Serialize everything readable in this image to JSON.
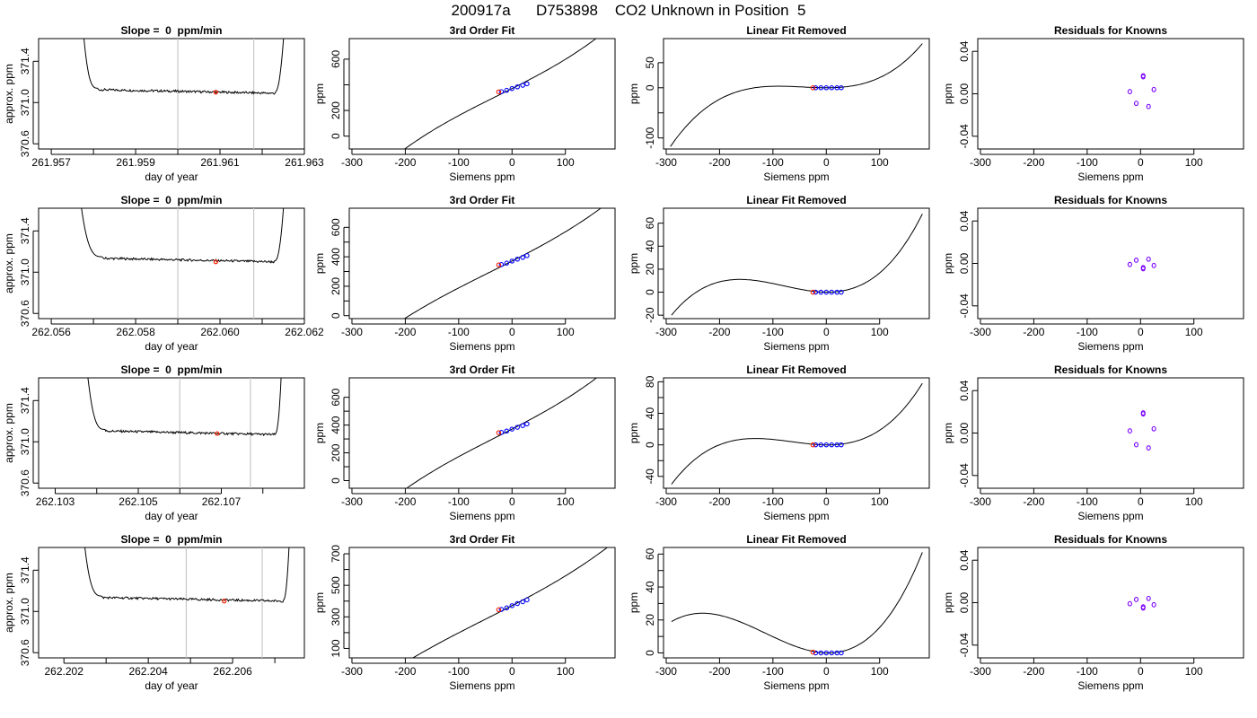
{
  "title": "200917a      D753898    CO2 Unknown in Position  5",
  "colors": {
    "line": "#000000",
    "grid_vline": "#c8c8c8",
    "unknown_point": "#ff2200",
    "known_point": "#0000ff",
    "residual_point": "#7a00ff"
  },
  "chart_data": [
    {
      "type": "line",
      "row": 0,
      "col": 0,
      "title": "Slope =  0  ppm/min",
      "xlabel": "day of year",
      "ylabel": "approx. ppm",
      "xlim": [
        261.9567,
        261.963
      ],
      "ylim": [
        370.55,
        371.62
      ],
      "xticks": [
        "261.957",
        "261.959",
        "261.961",
        "261.963"
      ],
      "xticks_minor": [
        261.958,
        261.96,
        261.962
      ],
      "yticks": [
        "370.6",
        "371.0",
        "371.4"
      ],
      "vlines": [
        261.96,
        261.9618
      ],
      "signal": {
        "start": 261.9577,
        "plateau_start": 261.9581,
        "plateau_end": 261.9623,
        "end": 261.9626,
        "level": 371.1
      },
      "unknown_point": {
        "x": 261.9609,
        "y": 371.1
      }
    },
    {
      "type": "line",
      "row": 0,
      "col": 1,
      "title": "3rd Order Fit",
      "xlabel": "Siemens ppm",
      "ylabel": "ppm",
      "xlim": [
        -305,
        193
      ],
      "ylim": [
        -100,
        760
      ],
      "xticks": [
        "-300",
        "-200",
        "-100",
        "0",
        "100"
      ],
      "yticks": [
        "0",
        "200",
        "600"
      ],
      "yticks_minor": [
        400
      ],
      "curve": {
        "poly": [
          371,
          2.09,
          0.00082,
          1.03e-05
        ],
        "x_range": [
          -292,
          180
        ]
      },
      "known_points": {
        "x": [
          -20,
          -10,
          0,
          10,
          20,
          28
        ],
        "y": [
          347,
          357,
          371,
          384,
          396,
          408
        ]
      },
      "unknown_points": {
        "x": [
          -25
        ],
        "y": [
          345
        ]
      }
    },
    {
      "type": "line",
      "row": 0,
      "col": 2,
      "title": "Linear Fit Removed",
      "xlabel": "Siemens ppm",
      "ylabel": "ppm",
      "xlim": [
        -305,
        193
      ],
      "ylim": [
        -122,
        98
      ],
      "xticks": [
        "-300",
        "-200",
        "-100",
        "0",
        "100"
      ],
      "yticks": [
        "-100",
        "0",
        "50"
      ],
      "yticks_minor": [
        -50
      ],
      "curve": {
        "cubic_through": [
          [
            -292,
            -117
          ],
          [
            -100,
            3
          ],
          [
            0,
            0
          ],
          [
            180,
            88
          ]
        ],
        "x_range": [
          -292,
          180
        ]
      },
      "known_points": {
        "x": [
          -20,
          -10,
          0,
          10,
          20,
          28
        ],
        "y": [
          0,
          0,
          0,
          0,
          0,
          0
        ]
      },
      "unknown_points": {
        "x": [
          -25
        ],
        "y": [
          0
        ]
      }
    },
    {
      "type": "scatter",
      "row": 0,
      "col": 3,
      "title": "Residuals for Knowns",
      "xlabel": "Siemens ppm",
      "ylabel": "ppm",
      "xlim": [
        -305,
        193
      ],
      "ylim": [
        -0.052,
        0.052
      ],
      "xticks": [
        "-300",
        "-200",
        "-100",
        "0",
        "100"
      ],
      "yticks": [
        "-0.04",
        "0.00",
        "0.04"
      ],
      "points": {
        "x": [
          -20,
          -8,
          5,
          5,
          15,
          25
        ],
        "y": [
          0.002,
          -0.009,
          0.016,
          0.017,
          -0.012,
          0.004
        ]
      }
    },
    {
      "type": "line",
      "row": 1,
      "col": 0,
      "title": "Slope =  0  ppm/min",
      "xlabel": "day of year",
      "ylabel": "approx. ppm",
      "xlim": [
        262.0557,
        262.062
      ],
      "ylim": [
        370.55,
        371.62
      ],
      "xticks": [
        "262.056",
        "262.058",
        "262.060",
        "262.062"
      ],
      "xticks_minor": [
        262.057,
        262.059,
        262.061
      ],
      "yticks": [
        "370.6",
        "371.0",
        "371.4"
      ],
      "vlines": [
        262.059,
        262.0608
      ],
      "signal": {
        "start": 262.0566,
        "plateau_start": 262.0572,
        "plateau_end": 262.0613,
        "end": 262.0616,
        "level": 371.11
      },
      "unknown_point": {
        "x": 262.0599,
        "y": 371.1
      }
    },
    {
      "type": "line",
      "row": 1,
      "col": 1,
      "title": "3rd Order Fit",
      "xlabel": "Siemens ppm",
      "ylabel": "ppm",
      "xlim": [
        -305,
        193
      ],
      "ylim": [
        -20,
        730
      ],
      "xticks": [
        "-300",
        "-200",
        "-100",
        "0",
        "100"
      ],
      "yticks": [
        "0",
        "200",
        "400",
        "600"
      ],
      "yticks_minor": [
        100,
        300,
        500
      ],
      "curve": {
        "poly": [
          371,
          1.84,
          0.00082,
          6.6e-06
        ],
        "x_range": [
          -292,
          180
        ]
      },
      "known_points": {
        "x": [
          -20,
          -10,
          0,
          10,
          20,
          28
        ],
        "y": [
          347,
          357,
          371,
          384,
          396,
          408
        ]
      },
      "unknown_points": {
        "x": [
          -25
        ],
        "y": [
          345
        ]
      }
    },
    {
      "type": "line",
      "row": 1,
      "col": 2,
      "title": "Linear Fit Removed",
      "xlabel": "Siemens ppm",
      "ylabel": "ppm",
      "xlim": [
        -305,
        193
      ],
      "ylim": [
        -23,
        73
      ],
      "xticks": [
        "-300",
        "-200",
        "-100",
        "0",
        "100"
      ],
      "yticks": [
        "-20",
        "0",
        "20",
        "40",
        "60"
      ],
      "curve": {
        "cubic_through": [
          [
            -290,
            -20
          ],
          [
            -170,
            11
          ],
          [
            0,
            0
          ],
          [
            180,
            68
          ]
        ],
        "x_range": [
          -290,
          180
        ]
      },
      "known_points": {
        "x": [
          -20,
          -10,
          0,
          10,
          20,
          28
        ],
        "y": [
          0,
          0,
          0,
          0,
          0,
          0
        ]
      },
      "unknown_points": {
        "x": [
          -25
        ],
        "y": [
          0
        ]
      }
    },
    {
      "type": "scatter",
      "row": 1,
      "col": 3,
      "title": "Residuals for Knowns",
      "xlabel": "Siemens ppm",
      "ylabel": "ppm",
      "xlim": [
        -305,
        193
      ],
      "ylim": [
        -0.052,
        0.052
      ],
      "xticks": [
        "-300",
        "-200",
        "-100",
        "0",
        "100"
      ],
      "yticks": [
        "-0.04",
        "0.00",
        "0.04"
      ],
      "points": {
        "x": [
          -20,
          -8,
          5,
          5,
          15,
          25
        ],
        "y": [
          -0.001,
          0.003,
          -0.005,
          -0.004,
          0.004,
          -0.002
        ]
      }
    },
    {
      "type": "line",
      "row": 2,
      "col": 0,
      "title": "Slope =  0  ppm/min",
      "xlabel": "day of year",
      "ylabel": "approx. ppm",
      "xlim": [
        262.1026,
        262.109
      ],
      "ylim": [
        370.55,
        371.62
      ],
      "xticks": [
        "262.103",
        "262.105",
        "262.107"
      ],
      "xticks_minor": [
        262.104,
        262.106,
        262.108
      ],
      "yticks": [
        "370.6",
        "371.0",
        "371.4"
      ],
      "vlines": [
        262.106,
        262.1077
      ],
      "signal": {
        "start": 262.1037,
        "plateau_start": 262.1042,
        "plateau_end": 262.1083,
        "end": 262.1085,
        "level": 371.08
      },
      "unknown_point": {
        "x": 262.1069,
        "y": 371.08
      }
    },
    {
      "type": "line",
      "row": 2,
      "col": 1,
      "title": "3rd Order Fit",
      "xlabel": "Siemens ppm",
      "ylabel": "ppm",
      "xlim": [
        -305,
        193
      ],
      "ylim": [
        -55,
        740
      ],
      "xticks": [
        "-300",
        "-200",
        "-100",
        "0",
        "100"
      ],
      "yticks": [
        "0",
        "200",
        "400",
        "600"
      ],
      "yticks_minor": [
        100,
        300,
        500
      ],
      "curve": {
        "poly": [
          371,
          1.98,
          0.00082,
          8.7e-06
        ],
        "x_range": [
          -292,
          180
        ]
      },
      "known_points": {
        "x": [
          -20,
          -10,
          0,
          10,
          20,
          28
        ],
        "y": [
          347,
          357,
          371,
          384,
          396,
          408
        ]
      },
      "unknown_points": {
        "x": [
          -25
        ],
        "y": [
          345
        ]
      }
    },
    {
      "type": "line",
      "row": 2,
      "col": 2,
      "title": "Linear Fit Removed",
      "xlabel": "Siemens ppm",
      "ylabel": "ppm",
      "xlim": [
        -305,
        193
      ],
      "ylim": [
        -55,
        85
      ],
      "xticks": [
        "-300",
        "-200",
        "-100",
        "0",
        "100"
      ],
      "yticks": [
        "-40",
        "0",
        "40",
        "80"
      ],
      "yticks_minor": [
        -20,
        20,
        60
      ],
      "curve": {
        "cubic_through": [
          [
            -290,
            -50
          ],
          [
            -140,
            8
          ],
          [
            0,
            0
          ],
          [
            180,
            78
          ]
        ],
        "x_range": [
          -290,
          180
        ]
      },
      "known_points": {
        "x": [
          -20,
          -10,
          0,
          10,
          20,
          28
        ],
        "y": [
          0,
          0,
          0,
          0,
          0,
          0
        ]
      },
      "unknown_points": {
        "x": [
          -25
        ],
        "y": [
          0
        ]
      }
    },
    {
      "type": "scatter",
      "row": 2,
      "col": 3,
      "title": "Residuals for Knowns",
      "xlabel": "Siemens ppm",
      "ylabel": "ppm",
      "xlim": [
        -305,
        193
      ],
      "ylim": [
        -0.052,
        0.052
      ],
      "xticks": [
        "-300",
        "-200",
        "-100",
        "0",
        "100"
      ],
      "yticks": [
        "-0.04",
        "0.00",
        "0.04"
      ],
      "points": {
        "x": [
          -20,
          -8,
          5,
          5,
          15,
          25
        ],
        "y": [
          0.002,
          -0.011,
          0.018,
          0.019,
          -0.014,
          0.004
        ]
      }
    },
    {
      "type": "line",
      "row": 3,
      "col": 0,
      "title": "Slope =  0  ppm/min",
      "xlabel": "day of year",
      "ylabel": "approx. ppm",
      "xlim": [
        262.2014,
        262.2077
      ],
      "ylim": [
        370.55,
        371.62
      ],
      "xticks": [
        "262.202",
        "262.204",
        "262.206"
      ],
      "xticks_minor": [
        262.203,
        262.205,
        262.207
      ],
      "yticks": [
        "370.6",
        "371.0",
        "371.4"
      ],
      "vlines": [
        262.2049,
        262.2067
      ],
      "signal": {
        "start": 262.2024,
        "plateau_start": 262.2029,
        "plateau_end": 262.2072,
        "end": 262.2074,
        "level": 371.11
      },
      "unknown_point": {
        "x": 262.2058,
        "y": 371.1
      }
    },
    {
      "type": "line",
      "row": 3,
      "col": 1,
      "title": "3rd Order Fit",
      "xlabel": "Siemens ppm",
      "ylabel": "ppm",
      "xlim": [
        -305,
        193
      ],
      "ylim": [
        40,
        740
      ],
      "xticks": [
        "-300",
        "-200",
        "-100",
        "0",
        "100"
      ],
      "yticks": [
        "100",
        "300",
        "500",
        "700"
      ],
      "yticks_minor": [
        200,
        400,
        600
      ],
      "curve": {
        "poly": [
          371,
          1.75,
          0.00082,
          5.4e-06
        ],
        "x_range": [
          -292,
          180
        ]
      },
      "known_points": {
        "x": [
          -20,
          -10,
          0,
          10,
          20,
          28
        ],
        "y": [
          347,
          357,
          371,
          384,
          396,
          408
        ]
      },
      "unknown_points": {
        "x": [
          -25
        ],
        "y": [
          345
        ]
      }
    },
    {
      "type": "line",
      "row": 3,
      "col": 2,
      "title": "Linear Fit Removed",
      "xlabel": "Siemens ppm",
      "ylabel": "ppm",
      "xlim": [
        -305,
        193
      ],
      "ylim": [
        -3,
        64
      ],
      "xticks": [
        "-300",
        "-200",
        "-100",
        "0",
        "100"
      ],
      "yticks": [
        "0",
        "20",
        "40",
        "60"
      ],
      "yticks_minor": [
        10,
        30,
        50
      ],
      "curve": {
        "cubic_through": [
          [
            -290,
            19
          ],
          [
            -240,
            24
          ],
          [
            0,
            0
          ],
          [
            180,
            61
          ]
        ],
        "x_range": [
          -290,
          180
        ]
      },
      "known_points": {
        "x": [
          -20,
          -10,
          0,
          10,
          20,
          28
        ],
        "y": [
          0,
          0,
          0,
          0,
          0,
          0
        ]
      },
      "unknown_points": {
        "x": [
          -25
        ],
        "y": [
          0.5
        ]
      }
    },
    {
      "type": "scatter",
      "row": 3,
      "col": 3,
      "title": "Residuals for Knowns",
      "xlabel": "Siemens ppm",
      "ylabel": "ppm",
      "xlim": [
        -305,
        193
      ],
      "ylim": [
        -0.052,
        0.052
      ],
      "xticks": [
        "-300",
        "-200",
        "-100",
        "0",
        "100"
      ],
      "yticks": [
        "-0.04",
        "0.00",
        "0.04"
      ],
      "points": {
        "x": [
          -20,
          -8,
          5,
          5,
          15,
          25
        ],
        "y": [
          -0.001,
          0.003,
          -0.005,
          -0.004,
          0.004,
          -0.002
        ]
      }
    }
  ]
}
